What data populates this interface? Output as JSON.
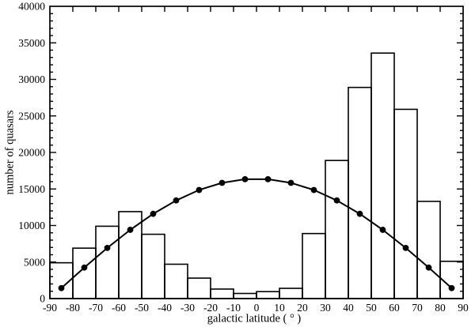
{
  "chart_data": {
    "type": "bar",
    "subtype": "histogram-with-line-overlay",
    "title": "",
    "xlabel": "galactic latitude ( ° )",
    "ylabel": "number of quasars",
    "xlim": [
      -90,
      90
    ],
    "ylim": [
      0,
      40000
    ],
    "grid": "off",
    "legend": "none",
    "x_ticks": [
      -90,
      -80,
      -70,
      -60,
      -50,
      -40,
      -30,
      -20,
      -10,
      0,
      10,
      20,
      30,
      40,
      50,
      60,
      70,
      80,
      90
    ],
    "x_tick_labels": [
      "-90",
      "-80",
      "-70",
      "-60",
      "-50",
      "-40",
      "-30",
      "-20",
      "-10",
      "0",
      "10",
      "20",
      "30",
      "40",
      "50",
      "60",
      "70",
      "80",
      "90"
    ],
    "y_major_ticks": [
      0,
      5000,
      10000,
      15000,
      20000,
      25000,
      30000,
      35000,
      40000
    ],
    "y_tick_labels": [
      "0",
      "5000",
      "10000",
      "15000",
      "20000",
      "25000",
      "30000",
      "35000",
      "40000"
    ],
    "y_major_step": 5000,
    "y_minor_step": 1000,
    "histogram": {
      "bin_start": -90,
      "bin_width": 10,
      "values": [
        4900,
        6900,
        9900,
        11900,
        8800,
        4700,
        2800,
        1300,
        700,
        950,
        1400,
        8900,
        18900,
        28900,
        33600,
        25900,
        13300,
        5100
      ]
    },
    "line_series": {
      "marker": "filled-circle",
      "x": [
        -85,
        -75,
        -65,
        -55,
        -45,
        -35,
        -25,
        -15,
        -5,
        5,
        15,
        25,
        35,
        45,
        55,
        65,
        75,
        85
      ],
      "y": [
        1430,
        4240,
        6930,
        9410,
        11600,
        13430,
        14860,
        15840,
        16340,
        16340,
        15840,
        14860,
        13430,
        11600,
        9410,
        6930,
        4240,
        1430
      ]
    },
    "colors": {
      "background": "#ffffff",
      "line": "#000000",
      "bar_fill": "#ffffff",
      "bar_stroke": "#000000",
      "text": "#000000",
      "frame": "#000000"
    }
  }
}
